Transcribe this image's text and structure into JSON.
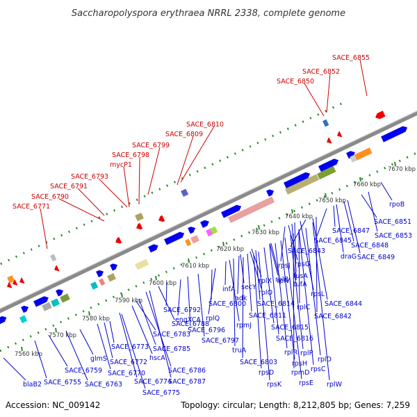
{
  "header": {
    "title": "Saccharopolyspora erythraea NRRL 2338, complete genome"
  },
  "footer": {
    "accession": "Accession: NC_009142",
    "summary": "Topology: circular; Length: 8,212,805 bp; Genes: 7,259"
  },
  "colors": {
    "forward_gene": "#0000ee",
    "reverse_gene": "#ee0000",
    "forward_label": "#0000cc",
    "reverse_label": "#cc0000",
    "backbone": "#8a8a8a",
    "tick": "#2a8a2a"
  },
  "scale": {
    "ticks": [
      {
        "label": "7560 kbp",
        "pos": 7560
      },
      {
        "label": "7570 kbp",
        "pos": 7570
      },
      {
        "label": "7580 kbp",
        "pos": 7580
      },
      {
        "label": "7590 kbp",
        "pos": 7590
      },
      {
        "label": "7600 kbp",
        "pos": 7600
      },
      {
        "label": "7610 kbp",
        "pos": 7610
      },
      {
        "label": "7620 kbp",
        "pos": 7620
      },
      {
        "label": "7630 kbp",
        "pos": 7630
      },
      {
        "label": "7640 kbp",
        "pos": 7640
      },
      {
        "label": "7650 kbp",
        "pos": 7650
      },
      {
        "label": "7660 kbp",
        "pos": 7660
      },
      {
        "label": "7670 kbp",
        "pos": 7670
      }
    ]
  },
  "reverse_labels": [
    {
      "text": "SACE_6771"
    },
    {
      "text": "SACE_6790"
    },
    {
      "text": "SACE_6791"
    },
    {
      "text": "SACE_6793"
    },
    {
      "text": "mycP1"
    },
    {
      "text": "SACE_6798"
    },
    {
      "text": "SACE_6799"
    },
    {
      "text": "SACE_6809"
    },
    {
      "text": "SACE_6810"
    },
    {
      "text": "SACE_6850"
    },
    {
      "text": "SACE_6852"
    },
    {
      "text": "SACE_6855"
    }
  ],
  "forward_labels": [
    {
      "text": "blaB2"
    },
    {
      "text": "SACE_6755"
    },
    {
      "text": "SACE_6759"
    },
    {
      "text": "SACE_6763"
    },
    {
      "text": "glmS"
    },
    {
      "text": "SACE_6770"
    },
    {
      "text": "SACE_6772"
    },
    {
      "text": "SACE_6773"
    },
    {
      "text": "SACE_6775"
    },
    {
      "text": "SACE_6774"
    },
    {
      "text": "hscA"
    },
    {
      "text": "SACE_6783"
    },
    {
      "text": "SACE_6785"
    },
    {
      "text": "SACE_6786"
    },
    {
      "text": "SACE_6787"
    },
    {
      "text": "SACE_6788"
    },
    {
      "text": "SACE_6792"
    },
    {
      "text": "engXCA"
    },
    {
      "text": "SACE_6796"
    },
    {
      "text": "SACE_6797"
    },
    {
      "text": "SACE_6800"
    },
    {
      "text": "rplQ"
    },
    {
      "text": "infA"
    },
    {
      "text": "rpmJ"
    },
    {
      "text": "truA"
    },
    {
      "text": "secY"
    },
    {
      "text": "adk"
    },
    {
      "text": "rplO"
    },
    {
      "text": "rplX"
    },
    {
      "text": "rplV"
    },
    {
      "text": "rplB"
    },
    {
      "text": "SACE_6803"
    },
    {
      "text": "rpsD"
    },
    {
      "text": "rpsK"
    },
    {
      "text": "SACE_6811"
    },
    {
      "text": "SACE_6814"
    },
    {
      "text": "SACE_6815"
    },
    {
      "text": "SACE_6816"
    },
    {
      "text": "rplR"
    },
    {
      "text": "rpsH"
    },
    {
      "text": "rpsE"
    },
    {
      "text": "rplP"
    },
    {
      "text": "rpmD"
    },
    {
      "text": "rpsC"
    },
    {
      "text": "rplD"
    },
    {
      "text": "rplW"
    },
    {
      "text": "rplC"
    },
    {
      "text": "rpsJ"
    },
    {
      "text": "rpsG"
    },
    {
      "text": "fusA"
    },
    {
      "text": "tufA"
    },
    {
      "text": "rpsL"
    },
    {
      "text": "SACE_6843"
    },
    {
      "text": "SACE_6844"
    },
    {
      "text": "SACE_6842"
    },
    {
      "text": "SACE_6845"
    },
    {
      "text": "SACE_6847"
    },
    {
      "text": "draG"
    },
    {
      "text": "SACE_6848"
    },
    {
      "text": "SACE_6849"
    },
    {
      "text": "SACE_6851"
    },
    {
      "text": "SACE_6853"
    },
    {
      "text": "rpoB"
    }
  ]
}
